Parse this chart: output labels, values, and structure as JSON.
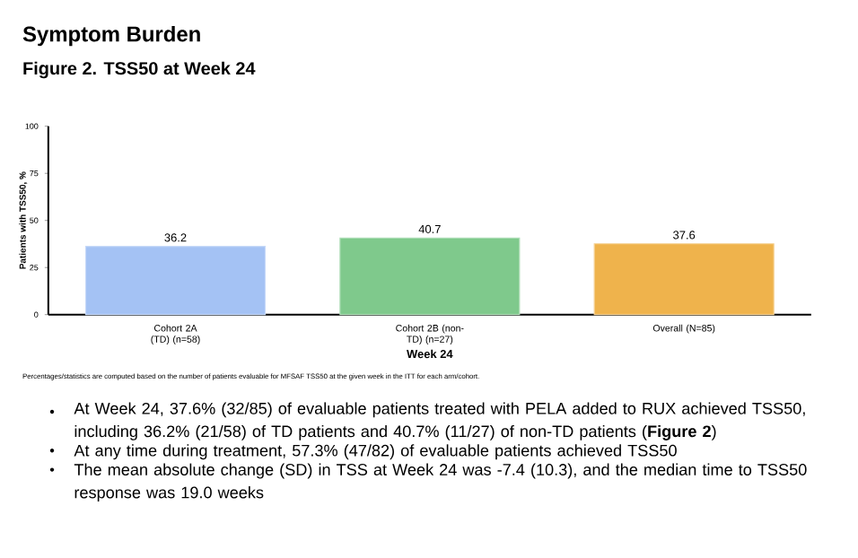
{
  "chart_data": {
    "type": "bar",
    "title": "Symptom Burden",
    "subtitle": "Figure 2. TSS50 at Week 24",
    "xlabel": "Week 24",
    "ylabel": "Patients with TSS50, %",
    "categories": [
      "Cohort 2A (TD) (n=58)",
      "Cohort 2B (non-TD) (n=27)",
      "Overall (N=85)"
    ],
    "values": [
      36.2,
      40.7,
      37.6
    ],
    "colors": [
      "#a4c2f4",
      "#7fc98c",
      "#efb34c"
    ],
    "ylim": [
      0,
      100
    ],
    "yticks": [
      0,
      25,
      50,
      75,
      100
    ],
    "data_labels": true,
    "grid": false,
    "annotations": [
      "Percentages/statistics are computed based on the number of patients evaluable for MFSAF TSS50 at the given week in the ITT for each arm/cohort.",
      "At Week 24, 37.6% (32/85) of evaluable patients treated with PELA added to RUX achieved TSS50, including 36.2% (21/58) of TD patients and 40.7% (11/27) of non-TD patients (**Figure 2**)",
      "At any time during treatment, 57.3% (47/82) of evaluable patients achieved TSS50",
      "The mean absolute change (SD) in TSS at Week 24 was -7.4 (10.3), and the median time to TSS50 response was 19.0 weeks"
    ]
  }
}
